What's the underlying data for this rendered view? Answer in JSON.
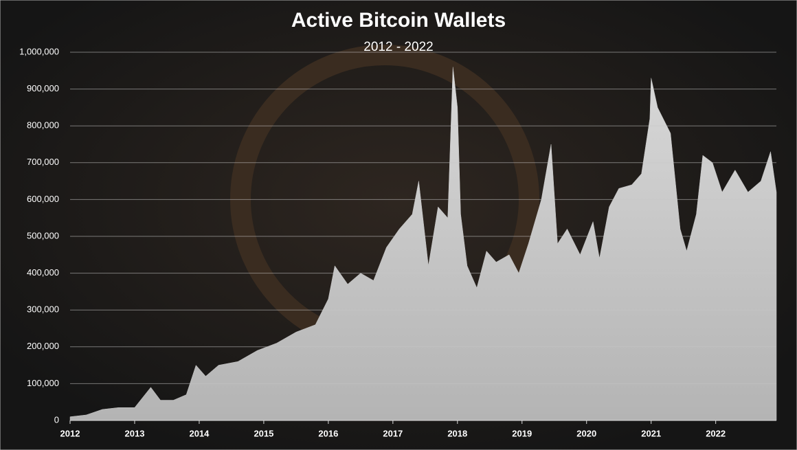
{
  "chart_data": {
    "type": "area",
    "title": "Active Bitcoin Wallets",
    "subtitle": "2012 - 2022",
    "color": "#c8c8c8",
    "x": [
      2012.0,
      2012.25,
      2012.5,
      2012.75,
      2013.0,
      2013.25,
      2013.4,
      2013.6,
      2013.8,
      2013.95,
      2014.1,
      2014.3,
      2014.6,
      2014.9,
      2015.2,
      2015.5,
      2015.8,
      2016.0,
      2016.1,
      2016.3,
      2016.5,
      2016.7,
      2016.9,
      2017.1,
      2017.3,
      2017.4,
      2017.55,
      2017.7,
      2017.85,
      2017.93,
      2018.0,
      2018.05,
      2018.15,
      2018.3,
      2018.45,
      2018.6,
      2018.8,
      2018.95,
      2019.1,
      2019.3,
      2019.45,
      2019.55,
      2019.7,
      2019.9,
      2020.1,
      2020.2,
      2020.35,
      2020.5,
      2020.7,
      2020.85,
      2020.98,
      2021.0,
      2021.1,
      2021.3,
      2021.45,
      2021.55,
      2021.7,
      2021.8,
      2021.95,
      2022.1,
      2022.3,
      2022.5,
      2022.7,
      2022.85,
      2022.94
    ],
    "values": [
      10000,
      15000,
      30000,
      35000,
      35000,
      90000,
      55000,
      55000,
      70000,
      150000,
      120000,
      150000,
      160000,
      190000,
      210000,
      240000,
      260000,
      330000,
      420000,
      370000,
      400000,
      380000,
      470000,
      520000,
      560000,
      650000,
      420000,
      580000,
      550000,
      960000,
      850000,
      560000,
      420000,
      360000,
      460000,
      430000,
      450000,
      400000,
      480000,
      600000,
      750000,
      480000,
      520000,
      450000,
      540000,
      440000,
      580000,
      630000,
      640000,
      670000,
      820000,
      930000,
      850000,
      780000,
      520000,
      460000,
      560000,
      720000,
      700000,
      620000,
      680000,
      620000,
      650000,
      730000,
      620000
    ],
    "xlim": [
      2012,
      2022.94
    ],
    "xticks": [
      2012,
      2013,
      2014,
      2015,
      2016,
      2017,
      2018,
      2019,
      2020,
      2021,
      2022
    ],
    "ylim": [
      0,
      1000000
    ],
    "yticks": [
      0,
      {
        "value": 100000,
        "label": "100,000"
      },
      {
        "value": 200000,
        "label": "200,000"
      },
      {
        "value": 300000,
        "label": "300,000"
      },
      {
        "value": 400000,
        "label": "400,000"
      },
      {
        "value": 500000,
        "label": "500,000"
      },
      {
        "value": 600000,
        "label": "600,000"
      },
      {
        "value": 700000,
        "label": "700,000"
      },
      {
        "value": 800000,
        "label": "800,000"
      },
      {
        "value": 900000,
        "label": "900,000"
      },
      {
        "value": 1000000,
        "label": "1,000,000"
      }
    ],
    "grid": true
  }
}
